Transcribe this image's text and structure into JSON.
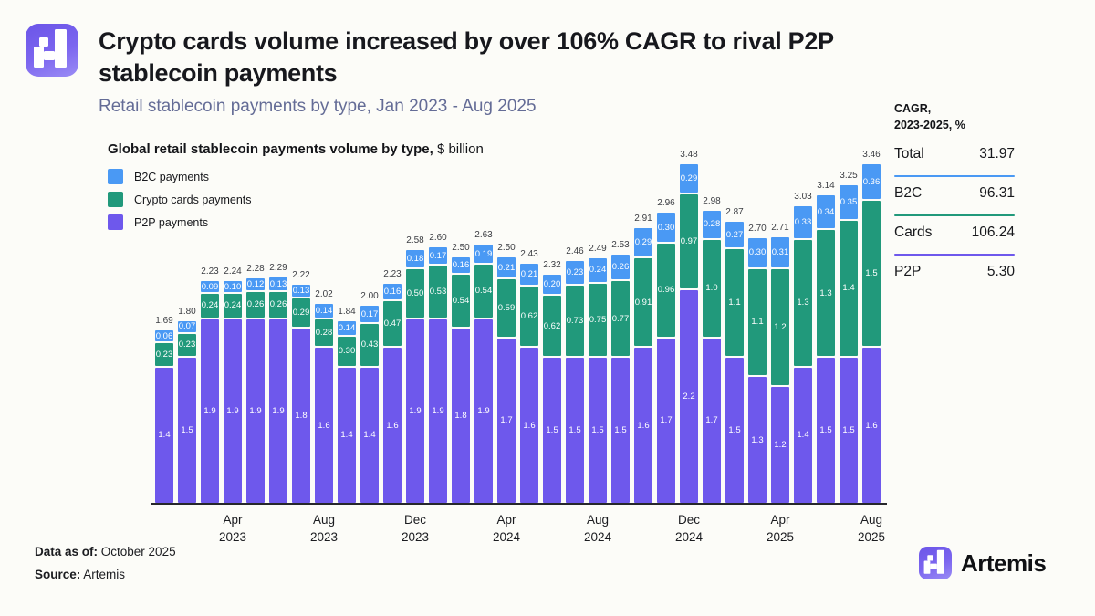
{
  "header": {
    "title_line1": "Crypto cards volume increased by over 106% CAGR to rival P2P",
    "title_line2": "stablecoin payments",
    "subtitle": "Retail stablecoin payments by type, Jan 2023 - Aug 2025"
  },
  "chart": {
    "title_bold": "Global retail stablecoin payments volume by type,",
    "title_suffix": " $ billion",
    "legend": {
      "b2c": "B2C payments",
      "cards": "Crypto cards payments",
      "p2p": "P2P payments"
    }
  },
  "chart_data": {
    "type": "bar",
    "stacked": true,
    "unit": "$ billion",
    "x": [
      "Jan 2023",
      "Feb 2023",
      "Mar 2023",
      "Apr 2023",
      "May 2023",
      "Jun 2023",
      "Jul 2023",
      "Aug 2023",
      "Sep 2023",
      "Oct 2023",
      "Nov 2023",
      "Dec 2023",
      "Jan 2024",
      "Feb 2024",
      "Mar 2024",
      "Apr 2024",
      "May 2024",
      "Jun 2024",
      "Jul 2024",
      "Aug 2024",
      "Sep 2024",
      "Oct 2024",
      "Nov 2024",
      "Dec 2024",
      "Jan 2025",
      "Feb 2025",
      "Mar 2025",
      "Apr 2025",
      "May 2025",
      "Jun 2025",
      "Jul 2025",
      "Aug 2025"
    ],
    "series": [
      {
        "key": "b2c",
        "name": "B2C payments",
        "values": [
          "0.06",
          "0.07",
          "0.09",
          "0.10",
          "0.12",
          "0.13",
          "0.13",
          "0.14",
          "0.14",
          "0.17",
          "0.16",
          "0.18",
          "0.17",
          "0.16",
          "0.19",
          "0.21",
          "0.21",
          "0.20",
          "0.23",
          "0.24",
          "0.26",
          "0.29",
          "0.30",
          "0.29",
          "0.28",
          "0.27",
          "0.30",
          "0.31",
          "0.33",
          "0.34",
          "0.35",
          "0.36"
        ]
      },
      {
        "key": "cards",
        "name": "Crypto cards payments",
        "values": [
          "0.23",
          "0.23",
          "0.24",
          "0.24",
          "0.26",
          "0.26",
          "0.29",
          "0.28",
          "0.30",
          "0.43",
          "0.47",
          "0.50",
          "0.53",
          "0.54",
          "0.54",
          "0.59",
          "0.62",
          "0.62",
          "0.73",
          "0.75",
          "0.77",
          "0.91",
          "0.96",
          "0.97",
          "1.0",
          "1.1",
          "1.1",
          "1.2",
          "1.3",
          "1.3",
          "1.4",
          "1.5"
        ]
      },
      {
        "key": "p2p",
        "name": "P2P payments",
        "values": [
          "1.4",
          "1.5",
          "1.9",
          "1.9",
          "1.9",
          "1.9",
          "1.8",
          "1.6",
          "1.4",
          "1.4",
          "1.6",
          "1.9",
          "1.9",
          "1.8",
          "1.9",
          "1.7",
          "1.6",
          "1.5",
          "1.5",
          "1.5",
          "1.5",
          "1.6",
          "1.7",
          "2.2",
          "1.7",
          "1.5",
          "1.3",
          "1.2",
          "1.4",
          "1.5",
          "1.5",
          "1.6"
        ]
      }
    ],
    "totals": [
      "1.69",
      "1.80",
      "2.23",
      "2.24",
      "2.28",
      "2.29",
      "2.22",
      "2.02",
      "1.84",
      "2.00",
      "2.23",
      "2.58",
      "2.60",
      "2.50",
      "2.63",
      "2.50",
      "2.43",
      "2.32",
      "2.46",
      "2.49",
      "2.53",
      "2.91",
      "2.96",
      "3.48",
      "2.98",
      "2.87",
      "2.70",
      "2.71",
      "3.03",
      "3.14",
      "3.25",
      "3.46"
    ],
    "ticks": [
      {
        "index": 3,
        "month": "Apr",
        "year": "2023"
      },
      {
        "index": 7,
        "month": "Aug",
        "year": "2023"
      },
      {
        "index": 11,
        "month": "Dec",
        "year": "2023"
      },
      {
        "index": 15,
        "month": "Apr",
        "year": "2024"
      },
      {
        "index": 19,
        "month": "Aug",
        "year": "2024"
      },
      {
        "index": 23,
        "month": "Dec",
        "year": "2024"
      },
      {
        "index": 27,
        "month": "Apr",
        "year": "2025"
      },
      {
        "index": 31,
        "month": "Aug",
        "year": "2025"
      }
    ],
    "ylim": [
      0,
      3.7
    ],
    "grid": false,
    "legend_position": "top-left"
  },
  "cagr_panel": {
    "header_line1": "CAGR,",
    "header_line2": "2023-2025, %",
    "rows": [
      {
        "label": "Total",
        "value": "31.97"
      },
      {
        "label": "B2C",
        "value": "96.31"
      },
      {
        "label": "Cards",
        "value": "106.24"
      },
      {
        "label": "P2P",
        "value": "5.30"
      }
    ]
  },
  "footer": {
    "data_as_of_label": "Data as of:",
    "data_as_of_value": " October 2025",
    "source_label": "Source:",
    "source_value": " Artemis"
  },
  "branding": {
    "wordmark": "Artemis"
  },
  "colors": {
    "b2c": "#4A99F4",
    "cards": "#21997B",
    "p2p": "#6E58EC"
  }
}
